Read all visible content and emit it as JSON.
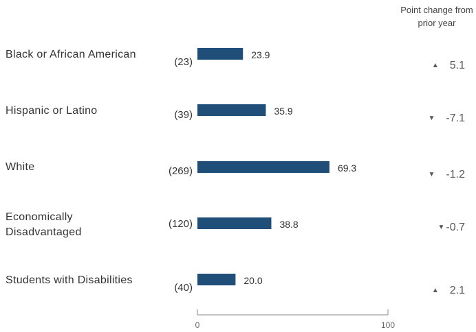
{
  "chart_data": {
    "type": "bar",
    "orientation": "horizontal",
    "column_header": "Point change from prior year",
    "categories": [
      "Black or African American",
      "Hispanic or Latino",
      "White",
      "Economically Disadvantaged",
      "Students with Disabilities"
    ],
    "counts": [
      "(23)",
      "(39)",
      "(269)",
      "(120)",
      "(40)"
    ],
    "values": [
      23.9,
      35.9,
      69.3,
      38.8,
      20.0
    ],
    "value_labels": [
      "23.9",
      "35.9",
      "69.3",
      "38.8",
      "20.0"
    ],
    "point_change": [
      "5.1",
      "-7.1",
      "-1.2",
      "-0.7",
      "2.1"
    ],
    "change_direction": [
      "up",
      "down",
      "down",
      "down",
      "up"
    ],
    "xlim": [
      0,
      100
    ],
    "x_ticks": [
      "0",
      "100"
    ],
    "bar_color": "#1f4e79",
    "arrow_color": "#555555"
  }
}
